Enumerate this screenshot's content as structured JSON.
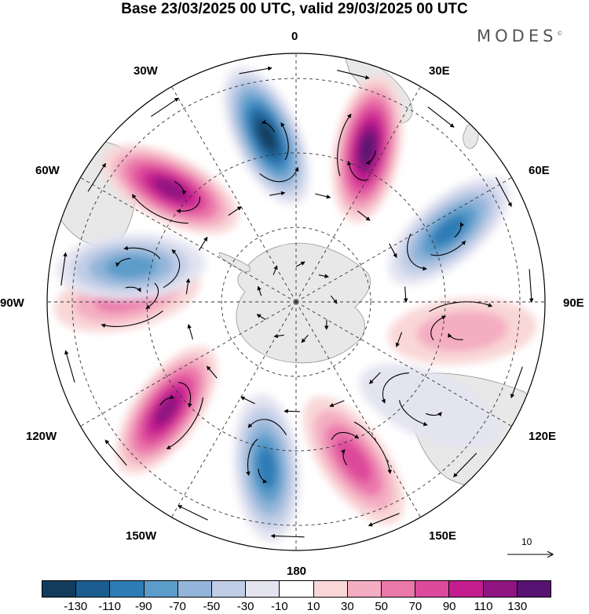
{
  "title": "Base 23/03/2025 00 UTC, valid 29/03/2025 00 UTC",
  "brand": {
    "text": "MODES",
    "mark": "©"
  },
  "longitude_labels": [
    "0",
    "30E",
    "60E",
    "90E",
    "120E",
    "150E",
    "180",
    "150W",
    "120W",
    "90W",
    "60W",
    "30W"
  ],
  "projection": "south-polar-stereographic",
  "vector_scale": {
    "label": "10"
  },
  "colorbar": {
    "colors": [
      "#133c5c",
      "#1c5c8e",
      "#2e7cb5",
      "#5c9ccb",
      "#93b5d9",
      "#c1cde6",
      "#e4e4f1",
      "#ffffff",
      "#f9d7d7",
      "#f4adc2",
      "#eb78ab",
      "#dc4a9b",
      "#c41e8e",
      "#8e1581",
      "#581272"
    ],
    "tick_labels": [
      "-130",
      "-110",
      "-90",
      "-70",
      "-50",
      "-30",
      "-10",
      "10",
      "30",
      "50",
      "70",
      "90",
      "110",
      "130"
    ]
  },
  "anomaly_centers": [
    {
      "lon_deg": -10,
      "value": -130
    },
    {
      "lon_deg": 25,
      "value": 130
    },
    {
      "lon_deg": -48,
      "value": 120
    },
    {
      "lon_deg": 65,
      "value": -90
    },
    {
      "lon_deg": -88,
      "value": 50
    },
    {
      "lon_deg": -78,
      "value": -70
    },
    {
      "lon_deg": 100,
      "value": 40
    },
    {
      "lon_deg": -130,
      "value": 110
    },
    {
      "lon_deg": -170,
      "value": -100
    },
    {
      "lon_deg": 160,
      "value": 80
    },
    {
      "lon_deg": 128,
      "value": -20
    }
  ]
}
